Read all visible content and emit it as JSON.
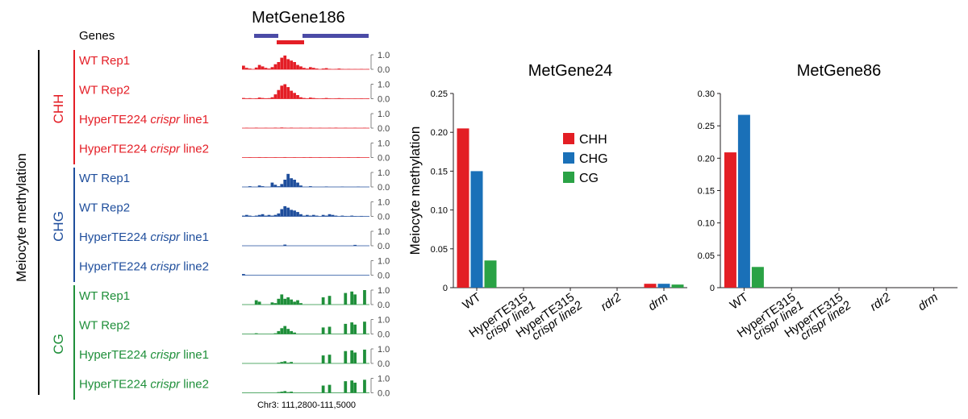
{
  "colors": {
    "CHH": "#e41e26",
    "CHG": "#1f4e9c",
    "CG": "#1f8f3a",
    "gene_bar": "#4b4ba6",
    "te_bar": "#e41e26",
    "bar_CHH": "#e31e24",
    "bar_CHG": "#1a70b8",
    "bar_CG": "#2aa245",
    "axis": "#231f20"
  },
  "browser": {
    "title": "MetGene186",
    "genes_label": "Genes",
    "y_label": "Meiocyte methylation",
    "coordinate": "Chr3: 111,2800-111,5000",
    "scale_top": "1.0",
    "scale_bottom": "0.0",
    "groups": [
      {
        "context": "CHH",
        "tracks": [
          {
            "label": "WT Rep1",
            "italic": "",
            "suffix": "",
            "signal": [
              0.25,
              0.1,
              0.05,
              0,
              0.12,
              0.3,
              0.2,
              0.1,
              0.05,
              0.15,
              0.35,
              0.5,
              0.8,
              0.95,
              0.7,
              0.6,
              0.5,
              0.3,
              0.2,
              0.1,
              0.05,
              0.15,
              0.1,
              0.05,
              0,
              0.05,
              0.08,
              0.03,
              0,
              0.02,
              0.05,
              0.02,
              0,
              0.02,
              0,
              0.01,
              0,
              0.02,
              0,
              0.01
            ]
          },
          {
            "label": "WT Rep2",
            "italic": "",
            "suffix": "",
            "signal": [
              0.05,
              0.02,
              0.04,
              0,
              0.03,
              0.08,
              0.05,
              0.03,
              0.04,
              0.1,
              0.3,
              0.6,
              0.9,
              1.0,
              0.8,
              0.55,
              0.4,
              0.25,
              0.1,
              0.05,
              0.02,
              0.08,
              0.05,
              0.02,
              0,
              0.03,
              0.05,
              0.02,
              0,
              0.02,
              0.04,
              0.02,
              0,
              0.01,
              0,
              0.01,
              0,
              0.02,
              0,
              0.01
            ]
          },
          {
            "label": "HyperTE224 ",
            "italic": "crispr",
            "suffix": " line1",
            "signal": [
              0,
              0.02,
              0,
              0,
              0.03,
              0,
              0,
              0.02,
              0,
              0,
              0.03,
              0,
              0.04,
              0.02,
              0,
              0.03,
              0,
              0,
              0.02,
              0,
              0,
              0.03,
              0,
              0,
              0.02,
              0,
              0,
              0.02,
              0,
              0.03,
              0,
              0,
              0.02,
              0,
              0,
              0.02,
              0,
              0,
              0.02,
              0
            ]
          },
          {
            "label": "HyperTE224 ",
            "italic": "crispr",
            "suffix": " line2",
            "signal": [
              0,
              0,
              0.02,
              0,
              0,
              0.03,
              0,
              0.02,
              0,
              0,
              0.02,
              0,
              0,
              0.03,
              0,
              0,
              0.02,
              0,
              0,
              0.02,
              0,
              0.03,
              0,
              0,
              0.02,
              0,
              0,
              0.02,
              0,
              0,
              0.02,
              0,
              0,
              0.02,
              0,
              0,
              0.03,
              0,
              0,
              0
            ]
          }
        ]
      },
      {
        "context": "CHG",
        "tracks": [
          {
            "label": "WT Rep1",
            "italic": "",
            "suffix": "",
            "signal": [
              0,
              0,
              0.05,
              0,
              0,
              0.1,
              0.05,
              0,
              0,
              0.3,
              0.15,
              0.05,
              0.2,
              0.5,
              0.9,
              0.6,
              0.5,
              0.3,
              0.1,
              0,
              0,
              0.05,
              0,
              0,
              0,
              0,
              0.03,
              0,
              0,
              0,
              0,
              0.02,
              0,
              0,
              0,
              0,
              0.02,
              0,
              0,
              0
            ]
          },
          {
            "label": "WT Rep2",
            "italic": "",
            "suffix": "",
            "signal": [
              0.05,
              0.1,
              0.05,
              0,
              0.05,
              0.1,
              0.15,
              0.05,
              0.1,
              0.05,
              0.1,
              0.2,
              0.5,
              0.7,
              0.6,
              0.45,
              0.4,
              0.3,
              0.15,
              0.05,
              0.1,
              0.05,
              0.1,
              0.05,
              0,
              0.1,
              0.05,
              0.15,
              0.1,
              0.05,
              0,
              0.05,
              0.02,
              0,
              0.05,
              0.02,
              0,
              0.03,
              0,
              0
            ]
          },
          {
            "label": "HyperTE224 ",
            "italic": "crispr",
            "suffix": " line1",
            "signal": [
              0,
              0,
              0,
              0,
              0,
              0,
              0,
              0,
              0,
              0,
              0,
              0,
              0,
              0.08,
              0,
              0,
              0,
              0,
              0,
              0,
              0,
              0,
              0,
              0,
              0,
              0,
              0,
              0,
              0,
              0,
              0,
              0,
              0,
              0,
              0,
              0.06,
              0,
              0,
              0,
              0
            ]
          },
          {
            "label": "HyperTE224 ",
            "italic": "crispr",
            "suffix": " line2",
            "signal": [
              0.08,
              0,
              0,
              0,
              0,
              0,
              0,
              0,
              0,
              0,
              0,
              0,
              0,
              0,
              0,
              0,
              0,
              0,
              0,
              0,
              0,
              0,
              0,
              0,
              0,
              0,
              0,
              0,
              0,
              0,
              0,
              0,
              0,
              0,
              0,
              0,
              0,
              0,
              0,
              0
            ]
          }
        ]
      },
      {
        "context": "CG",
        "tracks": [
          {
            "label": "WT Rep1",
            "italic": "",
            "suffix": "",
            "signal": [
              0,
              0,
              0,
              0,
              0.3,
              0.2,
              0,
              0,
              0,
              0.15,
              0.1,
              0.4,
              0.7,
              0.4,
              0.5,
              0.35,
              0.2,
              0.3,
              0.1,
              0,
              0,
              0,
              0,
              0,
              0,
              0.5,
              0,
              0.6,
              0,
              0,
              0,
              0,
              0.8,
              0,
              0.9,
              0.7,
              0,
              0,
              1.0,
              0
            ]
          },
          {
            "label": "WT Rep2",
            "italic": "",
            "suffix": "",
            "signal": [
              0,
              0,
              0,
              0,
              0.05,
              0,
              0,
              0,
              0,
              0,
              0.05,
              0.2,
              0.4,
              0.55,
              0.35,
              0.2,
              0.1,
              0,
              0,
              0,
              0,
              0,
              0,
              0,
              0,
              0.45,
              0,
              0.5,
              0,
              0,
              0,
              0,
              0.7,
              0,
              0.8,
              0.65,
              0,
              0,
              0.85,
              0
            ]
          },
          {
            "label": "HyperTE224 ",
            "italic": "crispr",
            "suffix": " line1",
            "signal": [
              0,
              0,
              0,
              0,
              0,
              0,
              0,
              0,
              0,
              0,
              0,
              0.05,
              0.1,
              0.15,
              0.05,
              0.1,
              0,
              0,
              0,
              0,
              0,
              0,
              0,
              0,
              0,
              0.55,
              0,
              0.6,
              0,
              0,
              0,
              0,
              0.85,
              0,
              0.9,
              0.75,
              0,
              0,
              0.95,
              0
            ]
          },
          {
            "label": "HyperTE224 ",
            "italic": "crispr",
            "suffix": " line2",
            "signal": [
              0,
              0,
              0,
              0,
              0,
              0,
              0,
              0,
              0,
              0,
              0,
              0.05,
              0.08,
              0.12,
              0.05,
              0.08,
              0,
              0,
              0,
              0,
              0,
              0,
              0,
              0,
              0,
              0.5,
              0,
              0.55,
              0,
              0,
              0,
              0,
              0.8,
              0,
              0.85,
              0.7,
              0,
              0,
              0.9,
              0
            ]
          }
        ]
      }
    ]
  },
  "chart_data": [
    {
      "type": "bar",
      "title": "MetGene24",
      "ylabel": "Meiocyte methylation",
      "ylim": [
        0,
        0.25
      ],
      "yticks": [
        "0",
        "0.05",
        "0.10",
        "0.15",
        "0.20",
        "0.25"
      ],
      "ytick_values": [
        0,
        0.05,
        0.1,
        0.15,
        0.2,
        0.25
      ],
      "categories": [
        {
          "line1": "WT",
          "line2": ""
        },
        {
          "line1": "HyperTE315",
          "line2": "crispr line1"
        },
        {
          "line1": "HyperTE315",
          "line2": "crispr line2"
        },
        {
          "line1": "rdr2",
          "line2": ""
        },
        {
          "line1": "drm",
          "line2": ""
        }
      ],
      "series": [
        {
          "name": "CHH",
          "values": [
            0.205,
            0,
            0,
            0,
            0.005
          ]
        },
        {
          "name": "CHG",
          "values": [
            0.15,
            0,
            0,
            0,
            0.005
          ]
        },
        {
          "name": "CG",
          "values": [
            0.035,
            0,
            0,
            0,
            0.004
          ]
        }
      ],
      "legend": [
        "CHH",
        "CHG",
        "CG"
      ],
      "legend_position": "upper-middle"
    },
    {
      "type": "bar",
      "title": "MetGene86",
      "ylabel": "",
      "ylim": [
        0,
        0.3
      ],
      "yticks": [
        "0",
        "0.05",
        "0.10",
        "0.15",
        "0.20",
        "0.25",
        "0.30"
      ],
      "ytick_values": [
        0,
        0.05,
        0.1,
        0.15,
        0.2,
        0.25,
        0.3
      ],
      "categories": [
        {
          "line1": "WT",
          "line2": ""
        },
        {
          "line1": "HyperTE315",
          "line2": "crispr line1"
        },
        {
          "line1": "HyperTE315",
          "line2": "crispr line2"
        },
        {
          "line1": "rdr2",
          "line2": ""
        },
        {
          "line1": "drm",
          "line2": ""
        }
      ],
      "series": [
        {
          "name": "CHH",
          "values": [
            0.209,
            0,
            0,
            0,
            0
          ]
        },
        {
          "name": "CHG",
          "values": [
            0.267,
            0,
            0,
            0,
            0
          ]
        },
        {
          "name": "CG",
          "values": [
            0.032,
            0,
            0,
            0,
            0
          ]
        }
      ]
    }
  ]
}
